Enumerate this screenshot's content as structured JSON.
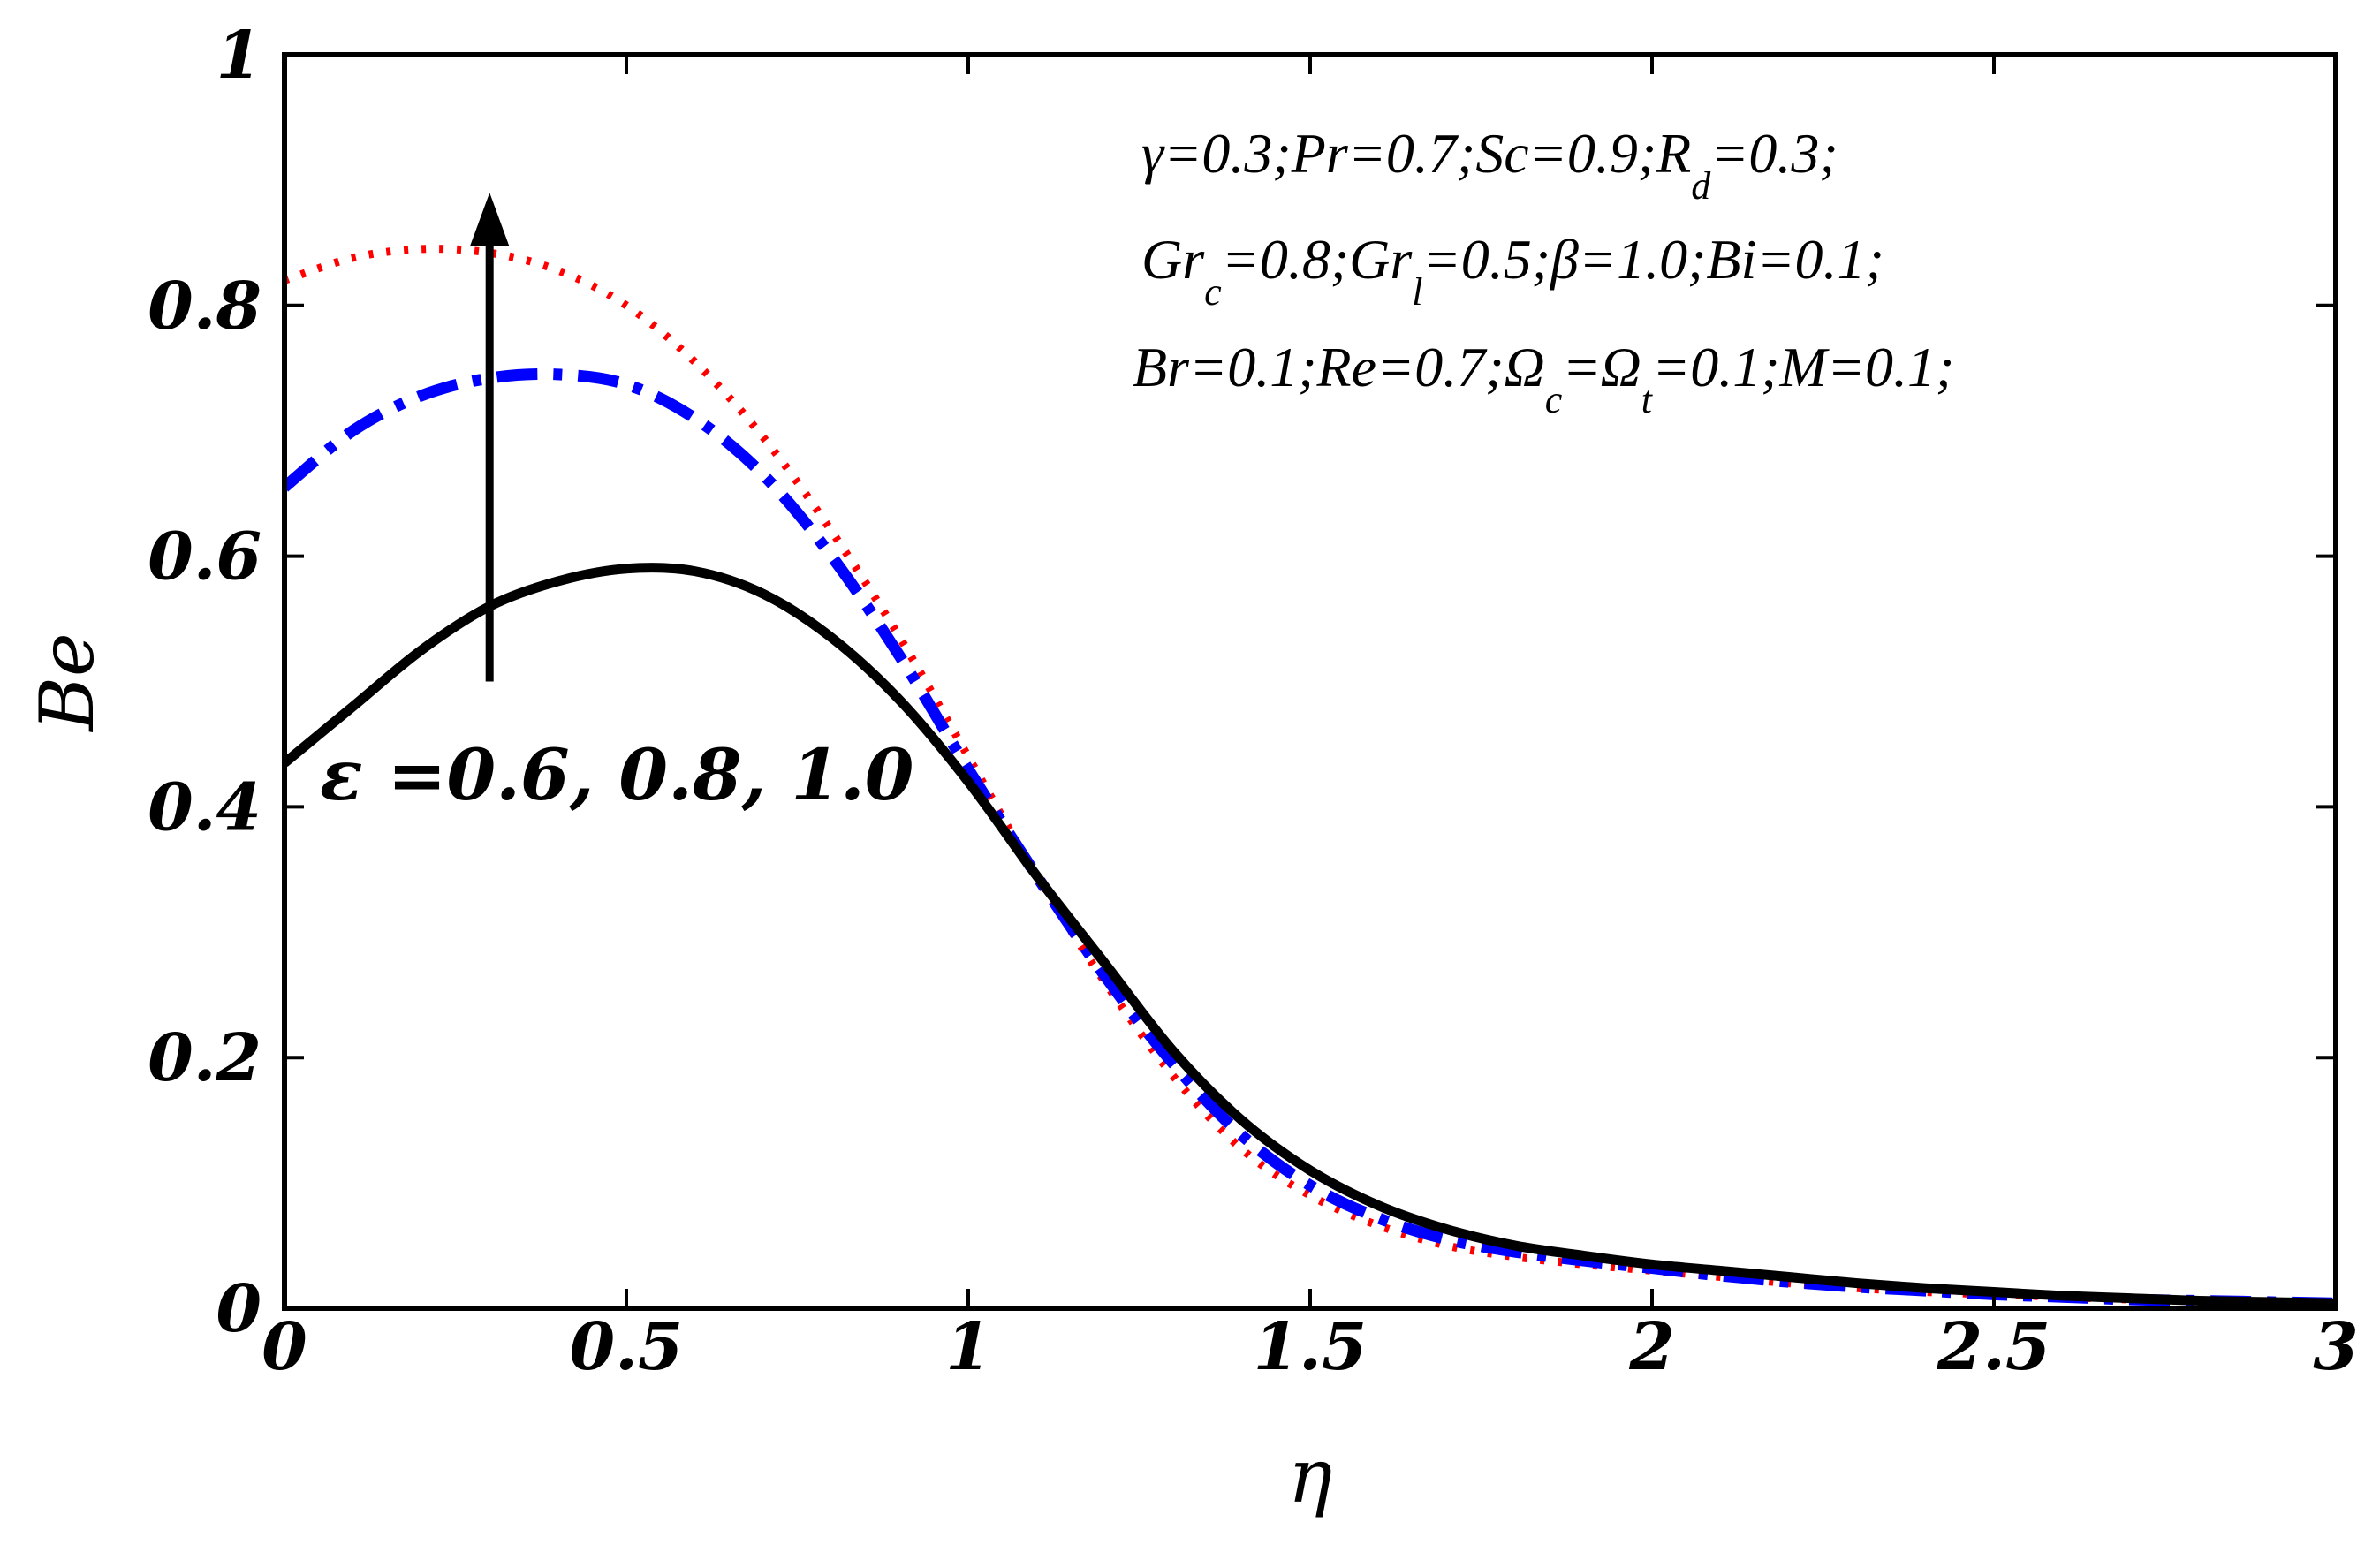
{
  "chart_data": {
    "type": "line",
    "xlabel": "η",
    "ylabel": "Be",
    "xlim": [
      0,
      3
    ],
    "ylim": [
      0,
      1
    ],
    "grid": false,
    "x_ticks": [
      0,
      0.5,
      1,
      1.5,
      2,
      2.5,
      3
    ],
    "x_tick_labels": [
      "0",
      "0.5",
      "1",
      "1.5",
      "2",
      "2.5",
      "3"
    ],
    "y_ticks": [
      0,
      0.2,
      0.4,
      0.6,
      0.8,
      1
    ],
    "y_tick_labels": [
      "0",
      "0.2",
      "0.4",
      "0.6",
      "0.8",
      "1"
    ],
    "x": [
      0,
      0.1,
      0.2,
      0.3,
      0.4,
      0.5,
      0.6,
      0.7,
      0.8,
      0.9,
      1.0,
      1.1,
      1.2,
      1.3,
      1.4,
      1.5,
      1.6,
      1.7,
      1.8,
      1.9,
      2.0,
      2.1,
      2.2,
      2.3,
      2.4,
      2.5,
      2.6,
      2.7,
      2.8,
      2.9,
      3.0
    ],
    "series": [
      {
        "name": "ε = 0.6",
        "color": "#000000",
        "style": "solid",
        "values": [
          0.435,
          0.48,
          0.525,
          0.56,
          0.58,
          0.59,
          0.588,
          0.57,
          0.535,
          0.485,
          0.42,
          0.345,
          0.275,
          0.205,
          0.15,
          0.11,
          0.082,
          0.063,
          0.05,
          0.042,
          0.035,
          0.03,
          0.025,
          0.02,
          0.016,
          0.013,
          0.01,
          0.008,
          0.006,
          0.005,
          0.004
        ]
      },
      {
        "name": "ε = 0.8",
        "color": "#0000ff",
        "style": "dashdot",
        "values": [
          0.655,
          0.7,
          0.728,
          0.742,
          0.745,
          0.737,
          0.71,
          0.665,
          0.6,
          0.52,
          0.43,
          0.345,
          0.265,
          0.195,
          0.138,
          0.098,
          0.072,
          0.055,
          0.045,
          0.038,
          0.032,
          0.026,
          0.021,
          0.017,
          0.014,
          0.011,
          0.009,
          0.007,
          0.006,
          0.005,
          0.004
        ]
      },
      {
        "name": "ε = 1.0",
        "color": "#ff0000",
        "style": "dotted",
        "values": [
          0.82,
          0.838,
          0.845,
          0.842,
          0.828,
          0.8,
          0.755,
          0.695,
          0.62,
          0.535,
          0.44,
          0.345,
          0.26,
          0.185,
          0.127,
          0.09,
          0.066,
          0.05,
          0.041,
          0.035,
          0.03,
          0.025,
          0.02,
          0.016,
          0.013,
          0.011,
          0.009,
          0.007,
          0.006,
          0.005,
          0.004
        ]
      }
    ],
    "annotation": {
      "text": "ε =0.6, 0.8, 1.0",
      "arrow_from": [
        0.3,
        0.5
      ],
      "arrow_to": [
        0.3,
        0.89
      ]
    },
    "parameters": [
      [
        {
          "t": "γ=0.3;Pr=0.7;Sc=0.9;R"
        },
        {
          "t": "d",
          "sub": true
        },
        {
          "t": "=0.3;"
        }
      ],
      [
        {
          "t": "Gr"
        },
        {
          "t": "c",
          "sub": true
        },
        {
          "t": "=0.8;Gr"
        },
        {
          "t": "l",
          "sub": true
        },
        {
          "t": "=0.5;β=1.0;Bi=0.1;"
        }
      ],
      [
        {
          "t": "Br=0.1;Re=0.7;Ω"
        },
        {
          "t": "c",
          "sub": true
        },
        {
          "t": "=Ω"
        },
        {
          "t": "t",
          "sub": true
        },
        {
          "t": "=0.1;M=0.1;"
        }
      ]
    ]
  }
}
